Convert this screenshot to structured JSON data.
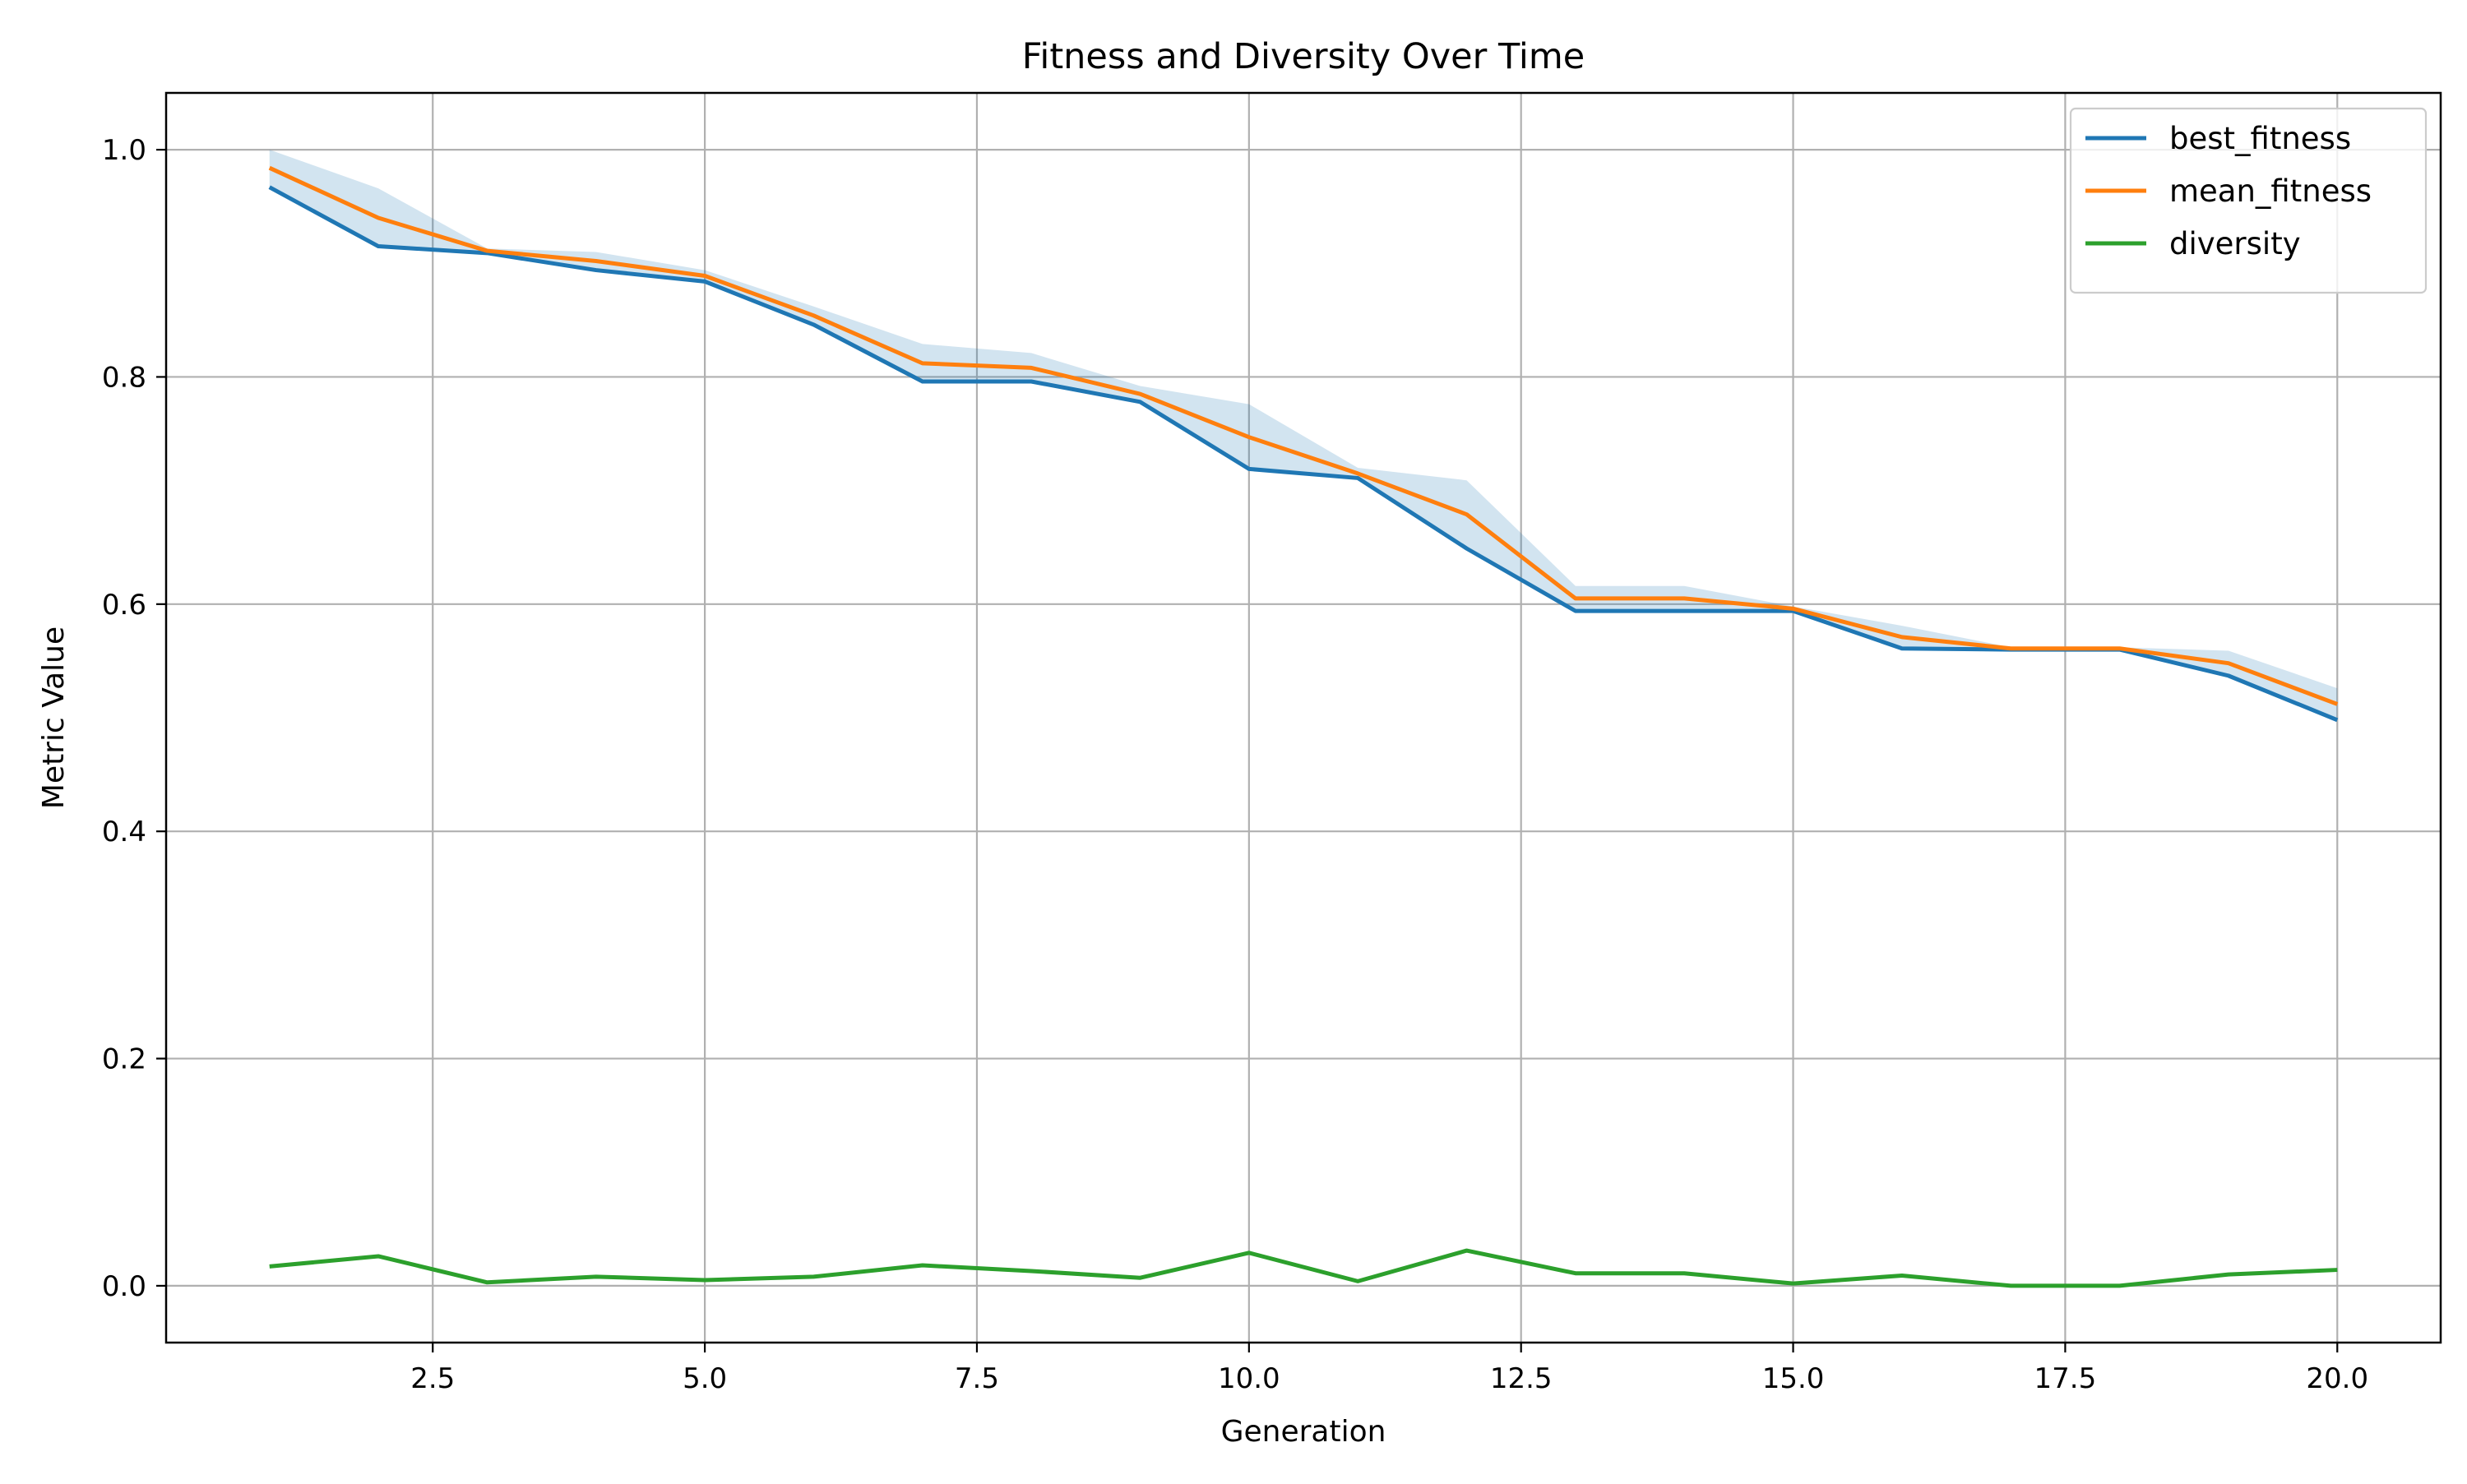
{
  "chart_data": {
    "type": "line",
    "title": "Fitness and Diversity Over Time",
    "xlabel": "Generation",
    "ylabel": "Metric Value",
    "xlim": [
      0.05,
      20.95
    ],
    "ylim": [
      -0.05,
      1.05
    ],
    "xticks": [
      2.5,
      5.0,
      7.5,
      10.0,
      12.5,
      15.0,
      17.5,
      20.0
    ],
    "xtick_labels": [
      "2.5",
      "5.0",
      "7.5",
      "10.0",
      "12.5",
      "15.0",
      "17.5",
      "20.0"
    ],
    "yticks": [
      0.0,
      0.2,
      0.4,
      0.6,
      0.8,
      1.0
    ],
    "ytick_labels": [
      "0.0",
      "0.2",
      "0.4",
      "0.6",
      "0.8",
      "1.0"
    ],
    "grid": true,
    "legend_position": "top-right",
    "x": [
      1,
      2,
      3,
      4,
      5,
      6,
      7,
      8,
      9,
      10,
      11,
      12,
      13,
      14,
      15,
      16,
      17,
      18,
      19,
      20
    ],
    "series": [
      {
        "name": "best_fitness",
        "color": "#1f77b4",
        "values": [
          0.967,
          0.915,
          0.909,
          0.894,
          0.884,
          0.846,
          0.796,
          0.796,
          0.778,
          0.719,
          0.711,
          0.649,
          0.594,
          0.594,
          0.594,
          0.561,
          0.56,
          0.56,
          0.537,
          0.498
        ]
      },
      {
        "name": "mean_fitness",
        "color": "#ff7f0e",
        "values": [
          0.984,
          0.94,
          0.911,
          0.902,
          0.889,
          0.854,
          0.812,
          0.808,
          0.785,
          0.747,
          0.715,
          0.679,
          0.605,
          0.605,
          0.596,
          0.571,
          0.561,
          0.561,
          0.548,
          0.512
        ]
      },
      {
        "name": "diversity",
        "color": "#2ca02c",
        "values": [
          0.017,
          0.026,
          0.003,
          0.008,
          0.005,
          0.008,
          0.018,
          0.013,
          0.007,
          0.029,
          0.004,
          0.031,
          0.011,
          0.011,
          0.002,
          0.009,
          0.0,
          0.0,
          0.01,
          0.014
        ]
      }
    ],
    "band": {
      "color": "#1f77b4",
      "opacity": 0.2,
      "lower": [
        0.967,
        0.915,
        0.909,
        0.894,
        0.884,
        0.846,
        0.796,
        0.796,
        0.778,
        0.719,
        0.711,
        0.649,
        0.594,
        0.594,
        0.594,
        0.561,
        0.56,
        0.56,
        0.537,
        0.498
      ],
      "upper": [
        1.0,
        0.966,
        0.913,
        0.91,
        0.894,
        0.862,
        0.829,
        0.821,
        0.792,
        0.776,
        0.72,
        0.709,
        0.616,
        0.616,
        0.598,
        0.581,
        0.562,
        0.562,
        0.559,
        0.526
      ]
    }
  }
}
